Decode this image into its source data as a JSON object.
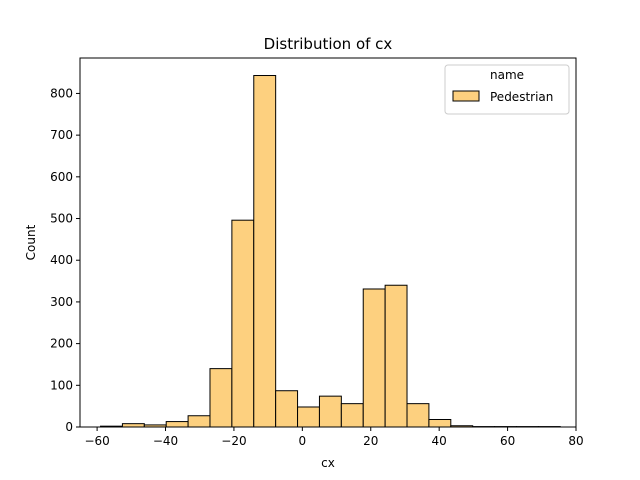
{
  "chart_data": {
    "type": "bar",
    "title": "Distribution of cx",
    "xlabel": "cx",
    "ylabel": "Count",
    "xlim": [
      -65,
      80
    ],
    "ylim": [
      0,
      885
    ],
    "xticks": [
      -60,
      -40,
      -20,
      0,
      20,
      40,
      60,
      80
    ],
    "yticks": [
      0,
      100,
      200,
      300,
      400,
      500,
      600,
      700,
      800
    ],
    "grid": false,
    "legend": {
      "title": "name",
      "position": "top-right",
      "entries": [
        {
          "name": "Pedestrian",
          "color": "#fdd07f"
        }
      ]
    },
    "bar_fill": "#fdd07f",
    "bar_edge": "#000000",
    "bins": [
      {
        "x0": -59.0,
        "x1": -52.6,
        "count": 2
      },
      {
        "x0": -52.6,
        "x1": -46.2,
        "count": 8
      },
      {
        "x0": -46.2,
        "x1": -39.8,
        "count": 5
      },
      {
        "x0": -39.8,
        "x1": -33.4,
        "count": 13
      },
      {
        "x0": -33.4,
        "x1": -27.0,
        "count": 27
      },
      {
        "x0": -27.0,
        "x1": -20.6,
        "count": 140
      },
      {
        "x0": -20.6,
        "x1": -14.2,
        "count": 496
      },
      {
        "x0": -14.2,
        "x1": -7.8,
        "count": 843
      },
      {
        "x0": -7.8,
        "x1": -1.4,
        "count": 87
      },
      {
        "x0": -1.4,
        "x1": 5.0,
        "count": 48
      },
      {
        "x0": 5.0,
        "x1": 11.4,
        "count": 74
      },
      {
        "x0": 11.4,
        "x1": 17.8,
        "count": 56
      },
      {
        "x0": 17.8,
        "x1": 24.2,
        "count": 331
      },
      {
        "x0": 24.2,
        "x1": 30.6,
        "count": 340
      },
      {
        "x0": 30.6,
        "x1": 37.0,
        "count": 56
      },
      {
        "x0": 37.0,
        "x1": 43.4,
        "count": 18
      },
      {
        "x0": 43.4,
        "x1": 49.8,
        "count": 3
      },
      {
        "x0": 49.8,
        "x1": 56.2,
        "count": 1
      },
      {
        "x0": 56.2,
        "x1": 62.6,
        "count": 1
      },
      {
        "x0": 62.6,
        "x1": 69.0,
        "count": 1
      },
      {
        "x0": 69.0,
        "x1": 75.4,
        "count": 1
      }
    ]
  }
}
